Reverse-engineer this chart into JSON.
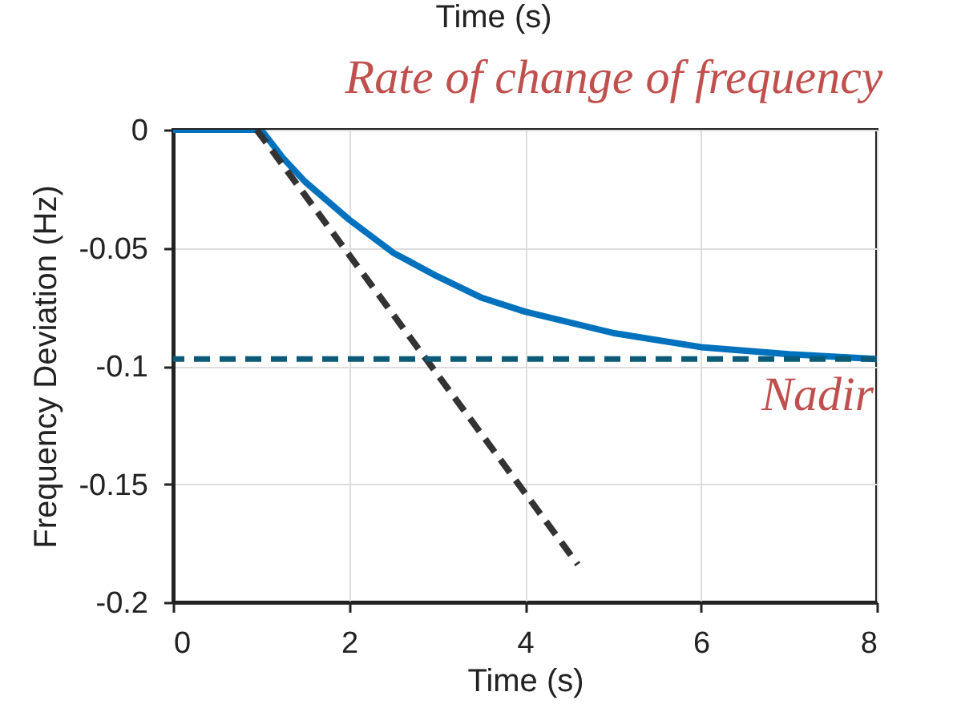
{
  "chart_data": {
    "type": "line",
    "xlabel": "Time (s)",
    "ylabel": "Frequency Deviation (Hz)",
    "annotations": [
      "Time (s)",
      "Rate of change of frequency"
    ],
    "xlim": [
      0,
      8
    ],
    "xticks": [
      0,
      2,
      4,
      6,
      8
    ],
    "ylim": [
      -0.2,
      0
    ],
    "yticks": [
      -0.2,
      -0.15,
      -0.1,
      -0.05,
      0
    ],
    "grid": true,
    "series": [
      {
        "color": "#0072bd",
        "line_style": "solid",
        "x": [
          0,
          1,
          1.25,
          1.5,
          2,
          2.5,
          3,
          3.5,
          4,
          5,
          6,
          7,
          8
        ],
        "values": [
          0,
          0,
          -0.012,
          -0.022,
          -0.038,
          -0.052,
          -0.062,
          -0.071,
          -0.077,
          -0.086,
          -0.092,
          -0.095,
          -0.097
        ]
      },
      {
        "color": "#333333",
        "line_style": "dashed",
        "x": [
          0.95,
          4.6
        ],
        "values": [
          0,
          -0.184
        ]
      }
    ],
    "ref_lines": [
      {
        "axis": "y",
        "value": -0.097,
        "label": "Nadir",
        "color": "#0b5a78",
        "line_style": "dashed"
      }
    ]
  }
}
